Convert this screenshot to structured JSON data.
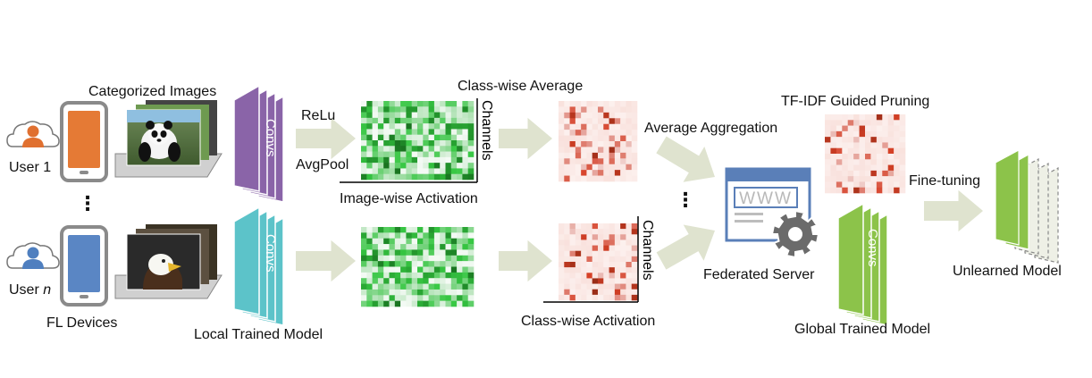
{
  "users": {
    "user1": "User 1",
    "usern_prefix": "User ",
    "usern_var": "n"
  },
  "devices": {
    "label": "FL Devices"
  },
  "images": {
    "categorized_label": "Categorized Images"
  },
  "local_model": {
    "convs_label": "Convs",
    "label": "Local Trained Model"
  },
  "activation": {
    "relu_label": "ReLu",
    "avgpool_label": "AvgPool",
    "image_wise_label": "Image-wise Activation",
    "class_wise_average_label": "Class-wise Average",
    "channels_label": "Channels",
    "class_wise_activation_label": "Class-wise Activation"
  },
  "aggregation": {
    "label": "Average Aggregation"
  },
  "server": {
    "label": "Federated Server",
    "www_text": "WWW"
  },
  "pruning": {
    "label": "TF-IDF Guided Pruning"
  },
  "global_model": {
    "convs_label": "Convs",
    "label": "Global Trained Model"
  },
  "finetune": {
    "label": "Fine-tuning"
  },
  "unlearned": {
    "label": "Unlearned Model"
  },
  "ellipsis": "⋮",
  "colors": {
    "user_top": "#e07030",
    "user_bottom": "#4f7fbf",
    "device_frame": "#8a8a8a",
    "phone_top": "#e57a35",
    "phone_bottom": "#5a86c4",
    "conv_purple": "#8a64a8",
    "conv_teal": "#5cc3c9",
    "conv_green": "#8cc34a",
    "arrow": "#dfe3cf",
    "heat_green": "#2e8b3a",
    "heat_red": "#b8321f",
    "server_blue": "#5a7fb8",
    "gear": "#6b6b6b"
  }
}
